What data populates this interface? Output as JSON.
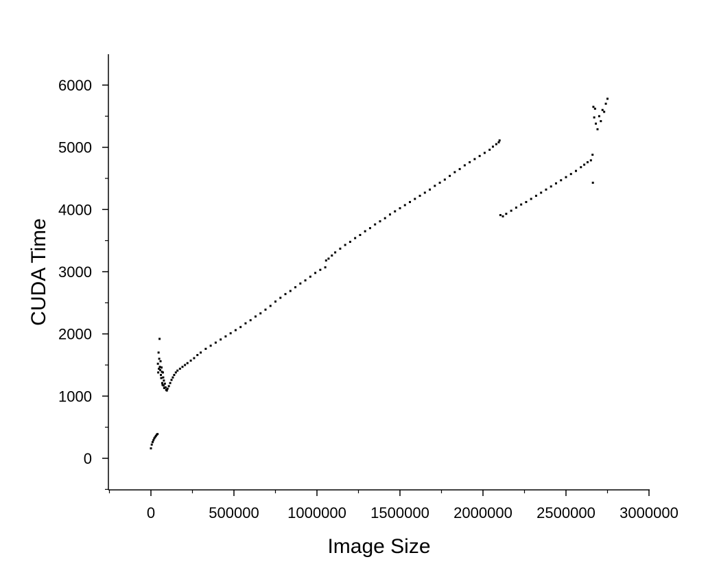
{
  "chart_data": {
    "type": "scatter",
    "title": "",
    "xlabel": "Image Size",
    "ylabel": "CUDA Time",
    "xlim": [
      -250000,
      3000000
    ],
    "ylim": [
      -500,
      6500
    ],
    "x_ticks": [
      0,
      500000,
      1000000,
      1500000,
      2000000,
      2500000,
      3000000
    ],
    "x_tick_labels": [
      "0",
      "500000",
      "1000000",
      "1500000",
      "2000000",
      "2500000",
      "3000000"
    ],
    "y_ticks": [
      0,
      1000,
      2000,
      3000,
      4000,
      5000,
      6000
    ],
    "y_tick_labels": [
      "0",
      "1000",
      "2000",
      "3000",
      "4000",
      "5000",
      "6000"
    ],
    "grid": false,
    "legend": "none",
    "marker_color": "#000000",
    "series": [
      {
        "values": [
          [
            0,
            160
          ],
          [
            5000,
            220
          ],
          [
            10000,
            260
          ],
          [
            15000,
            290
          ],
          [
            20000,
            320
          ],
          [
            25000,
            340
          ],
          [
            30000,
            360
          ],
          [
            35000,
            380
          ],
          [
            40000,
            390
          ],
          [
            42000,
            1520
          ],
          [
            44000,
            1380
          ],
          [
            46000,
            1700
          ],
          [
            48000,
            1440
          ],
          [
            50000,
            1600
          ],
          [
            52000,
            1920
          ],
          [
            54000,
            1470
          ],
          [
            56000,
            1420
          ],
          [
            58000,
            1560
          ],
          [
            60000,
            1340
          ],
          [
            62000,
            1290
          ],
          [
            64000,
            1460
          ],
          [
            66000,
            1390
          ],
          [
            68000,
            1210
          ],
          [
            70000,
            1180
          ],
          [
            72000,
            1380
          ],
          [
            74000,
            1300
          ],
          [
            76000,
            1170
          ],
          [
            78000,
            1250
          ],
          [
            80000,
            1130
          ],
          [
            84000,
            1200
          ],
          [
            88000,
            1140
          ],
          [
            92000,
            1100
          ],
          [
            96000,
            1090
          ],
          [
            100000,
            1120
          ],
          [
            108000,
            1160
          ],
          [
            116000,
            1210
          ],
          [
            124000,
            1260
          ],
          [
            132000,
            1300
          ],
          [
            140000,
            1340
          ],
          [
            150000,
            1380
          ],
          [
            160000,
            1410
          ],
          [
            175000,
            1440
          ],
          [
            190000,
            1470
          ],
          [
            205000,
            1500
          ],
          [
            220000,
            1530
          ],
          [
            240000,
            1570
          ],
          [
            260000,
            1610
          ],
          [
            280000,
            1660
          ],
          [
            300000,
            1700
          ],
          [
            330000,
            1760
          ],
          [
            360000,
            1810
          ],
          [
            390000,
            1860
          ],
          [
            420000,
            1910
          ],
          [
            450000,
            1960
          ],
          [
            480000,
            2010
          ],
          [
            510000,
            2060
          ],
          [
            540000,
            2110
          ],
          [
            570000,
            2170
          ],
          [
            600000,
            2220
          ],
          [
            630000,
            2280
          ],
          [
            660000,
            2330
          ],
          [
            690000,
            2390
          ],
          [
            720000,
            2450
          ],
          [
            750000,
            2520
          ],
          [
            780000,
            2580
          ],
          [
            810000,
            2640
          ],
          [
            840000,
            2690
          ],
          [
            870000,
            2750
          ],
          [
            900000,
            2810
          ],
          [
            930000,
            2860
          ],
          [
            960000,
            2920
          ],
          [
            990000,
            2980
          ],
          [
            1020000,
            3030
          ],
          [
            1050000,
            3070
          ],
          [
            1055000,
            3180
          ],
          [
            1070000,
            3210
          ],
          [
            1090000,
            3260
          ],
          [
            1110000,
            3310
          ],
          [
            1140000,
            3370
          ],
          [
            1170000,
            3430
          ],
          [
            1200000,
            3480
          ],
          [
            1230000,
            3540
          ],
          [
            1260000,
            3590
          ],
          [
            1290000,
            3650
          ],
          [
            1320000,
            3700
          ],
          [
            1350000,
            3760
          ],
          [
            1380000,
            3810
          ],
          [
            1410000,
            3860
          ],
          [
            1440000,
            3920
          ],
          [
            1470000,
            3970
          ],
          [
            1500000,
            4020
          ],
          [
            1530000,
            4070
          ],
          [
            1560000,
            4120
          ],
          [
            1590000,
            4170
          ],
          [
            1620000,
            4220
          ],
          [
            1650000,
            4270
          ],
          [
            1680000,
            4320
          ],
          [
            1710000,
            4380
          ],
          [
            1740000,
            4430
          ],
          [
            1770000,
            4480
          ],
          [
            1800000,
            4540
          ],
          [
            1830000,
            4600
          ],
          [
            1860000,
            4650
          ],
          [
            1890000,
            4710
          ],
          [
            1920000,
            4760
          ],
          [
            1950000,
            4810
          ],
          [
            1980000,
            4860
          ],
          [
            2010000,
            4910
          ],
          [
            2040000,
            4960
          ],
          [
            2060000,
            5010
          ],
          [
            2080000,
            5050
          ],
          [
            2095000,
            5080
          ],
          [
            2100000,
            5110
          ],
          [
            2105000,
            3910
          ],
          [
            2120000,
            3890
          ],
          [
            2140000,
            3930
          ],
          [
            2170000,
            3980
          ],
          [
            2200000,
            4030
          ],
          [
            2230000,
            4080
          ],
          [
            2260000,
            4120
          ],
          [
            2290000,
            4170
          ],
          [
            2320000,
            4220
          ],
          [
            2350000,
            4270
          ],
          [
            2380000,
            4320
          ],
          [
            2410000,
            4370
          ],
          [
            2440000,
            4420
          ],
          [
            2470000,
            4470
          ],
          [
            2500000,
            4520
          ],
          [
            2530000,
            4570
          ],
          [
            2560000,
            4620
          ],
          [
            2590000,
            4680
          ],
          [
            2610000,
            4720
          ],
          [
            2630000,
            4760
          ],
          [
            2650000,
            4790
          ],
          [
            2660000,
            4880
          ],
          [
            2662000,
            4430
          ],
          [
            2665000,
            5650
          ],
          [
            2670000,
            5480
          ],
          [
            2675000,
            5620
          ],
          [
            2680000,
            5380
          ],
          [
            2690000,
            5290
          ],
          [
            2700000,
            5500
          ],
          [
            2710000,
            5420
          ],
          [
            2720000,
            5600
          ],
          [
            2730000,
            5570
          ],
          [
            2740000,
            5700
          ],
          [
            2750000,
            5780
          ]
        ]
      }
    ]
  }
}
